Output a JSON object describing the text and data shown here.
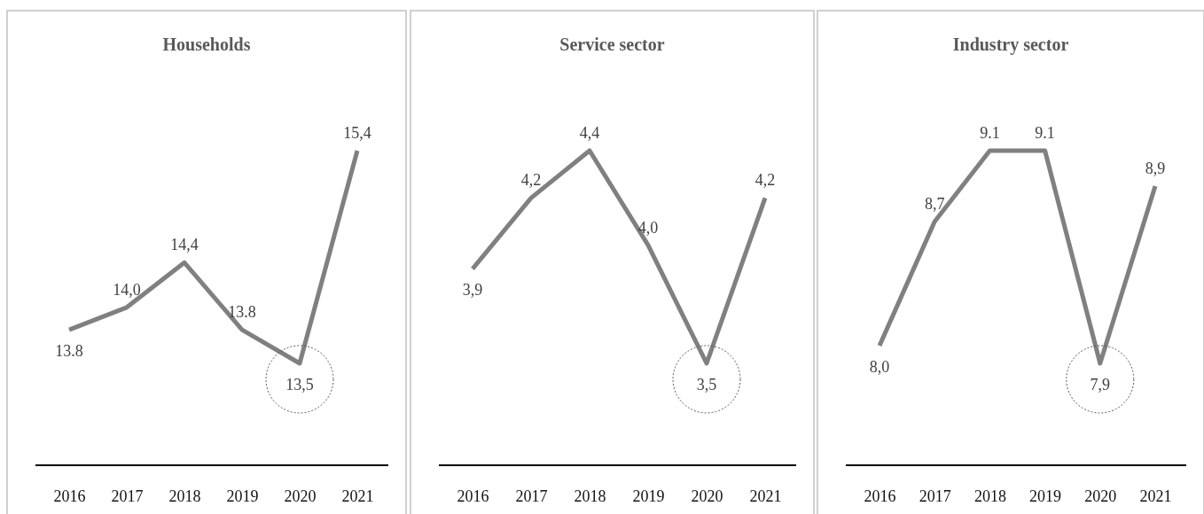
{
  "chart_data": [
    {
      "type": "line",
      "title": "Households",
      "categories": [
        "2016",
        "2017",
        "2018",
        "2019",
        "2020",
        "2021"
      ],
      "series": [
        {
          "color": "#808080",
          "values": [
            13.8,
            14.0,
            14.4,
            13.8,
            13.5,
            15.4
          ],
          "value_labels": [
            "13.8",
            "14,0",
            "14,4",
            "13.8",
            "13,5",
            "15,4"
          ]
        }
      ]
    },
    {
      "type": "line",
      "title": "Service sector",
      "categories": [
        "2016",
        "2017",
        "2018",
        "2019",
        "2020",
        "2021"
      ],
      "series": [
        {
          "color": "#808080",
          "values": [
            3.9,
            4.2,
            4.4,
            4.0,
            3.5,
            4.2
          ],
          "value_labels": [
            "3,9",
            "4,2",
            "4,4",
            "4,0",
            "3,5",
            "4,2"
          ]
        }
      ]
    },
    {
      "type": "line",
      "title": "Industry sector",
      "categories": [
        "2016",
        "2017",
        "2018",
        "2019",
        "2020",
        "2021"
      ],
      "series": [
        {
          "color": "#808080",
          "values": [
            8.0,
            8.7,
            9.1,
            9.1,
            7.9,
            8.9
          ],
          "value_labels": [
            "8,0",
            "8,7",
            "9.1",
            "9.1",
            "7,9",
            "8,9"
          ]
        }
      ]
    }
  ]
}
